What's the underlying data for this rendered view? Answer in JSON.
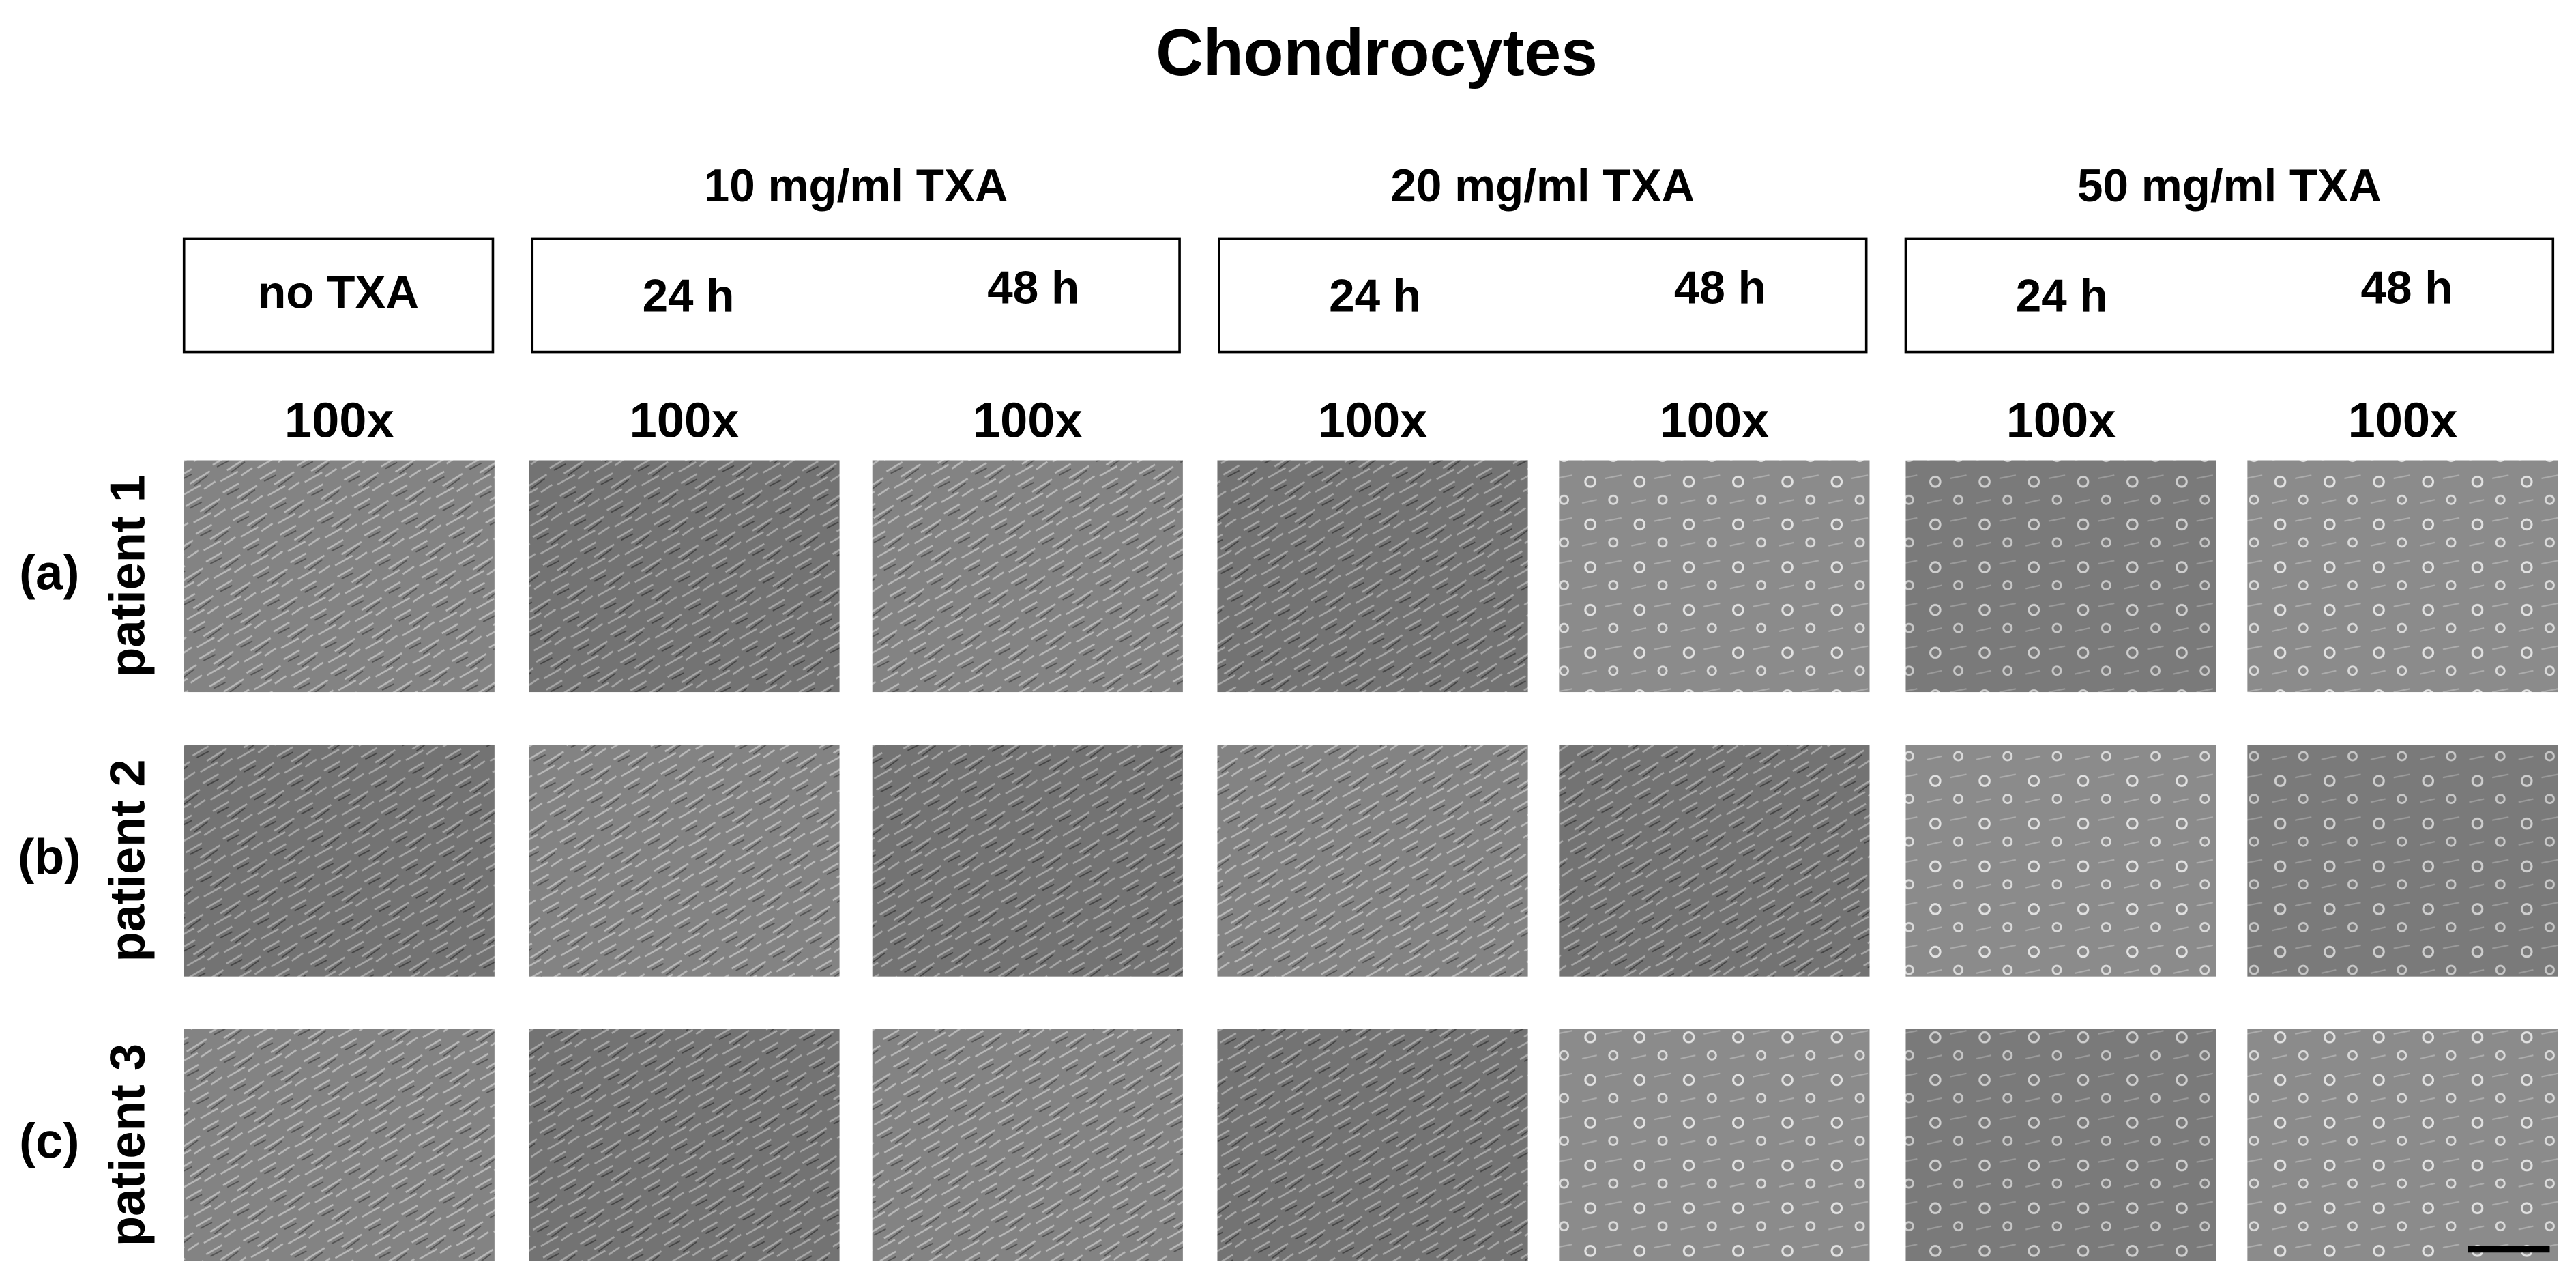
{
  "title": "Chondrocytes",
  "control": {
    "label": "no TXA"
  },
  "treatments": [
    {
      "heading": "10 mg/ml TXA",
      "times": [
        "24 h",
        "48 h"
      ]
    },
    {
      "heading": "20 mg/ml TXA",
      "times": [
        "24 h",
        "48 h"
      ]
    },
    {
      "heading": "50 mg/ml TXA",
      "times": [
        "24 h",
        "48 h"
      ]
    }
  ],
  "magnifications": [
    "100x",
    "100x",
    "100x",
    "100x",
    "100x",
    "100x",
    "100x"
  ],
  "rows": [
    {
      "letter": "(a)",
      "label": "patient 1"
    },
    {
      "letter": "(b)",
      "label": "patient 2"
    },
    {
      "letter": "(c)",
      "label": "patient 3"
    }
  ]
}
